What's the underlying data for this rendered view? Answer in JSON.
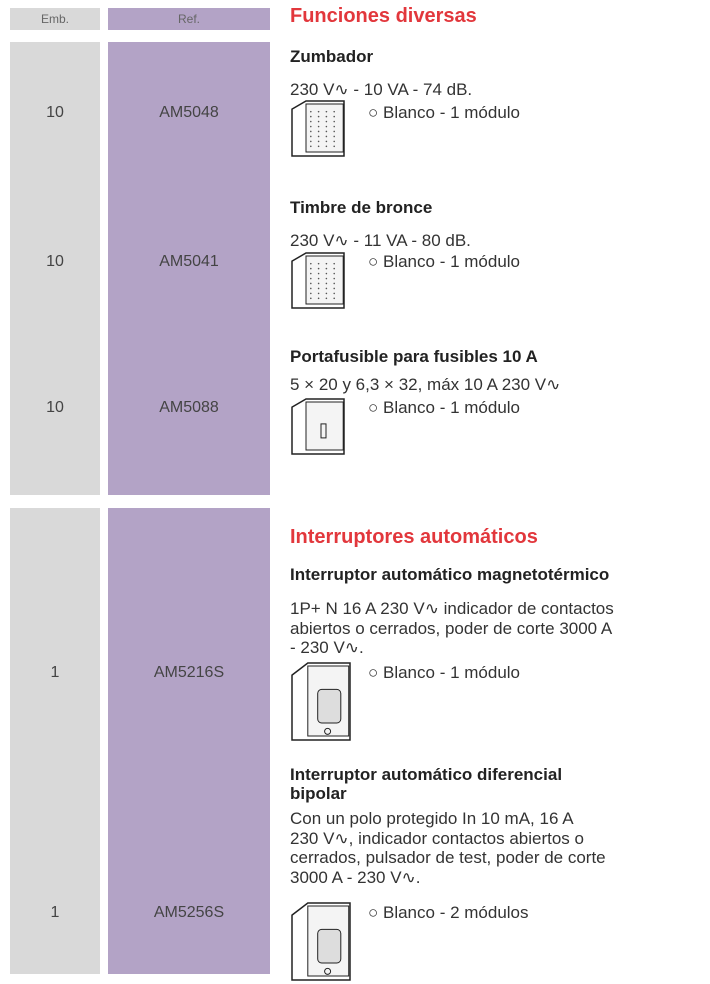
{
  "header": {
    "emb_label": "Emb.",
    "ref_label": "Ref."
  },
  "sections": [
    {
      "title": "Funciones diversas",
      "items": [
        {
          "title": [
            "Zumbador"
          ],
          "description": [
            "230 V∿ - 10 VA - 74 dB."
          ],
          "variant": "○ Blanco - 1 módulo",
          "emb": "10",
          "ref": "AM5048"
        },
        {
          "title": [
            "Timbre de bronce"
          ],
          "description": [
            "230 V∿ - 11 VA - 80 dB."
          ],
          "variant": "○ Blanco - 1 módulo",
          "emb": "10",
          "ref": "AM5041"
        },
        {
          "title": [
            "Portafusible para fusibles 10 A"
          ],
          "description": [
            "5 × 20 y 6,3 × 32, máx 10 A 230 V∿"
          ],
          "variant": "○ Blanco - 1 módulo",
          "emb": "10",
          "ref": "AM5088"
        }
      ]
    },
    {
      "title": "Interruptores automáticos",
      "items": [
        {
          "title": [
            "Interruptor automático magnetotérmico"
          ],
          "description": [
            "1P+ N 16 A 230 V∿ indicador de contactos",
            "abiertos o cerrados, poder de corte 3000 A",
            "- 230 V∿."
          ],
          "variant": "○ Blanco - 1 módulo",
          "emb": "1",
          "ref": "AM5216S"
        },
        {
          "title": [
            "Interruptor automático diferencial",
            "bipolar"
          ],
          "description": [
            "Con un polo protegido In 10 mA, 16 A",
            "230 V∿, indicador contactos abiertos o",
            "cerrados, pulsador de test, poder de corte",
            "3000 A - 230 V∿."
          ],
          "variant": "○ Blanco - 2 módulos",
          "emb": "1",
          "ref": "AM5256S"
        }
      ]
    }
  ]
}
